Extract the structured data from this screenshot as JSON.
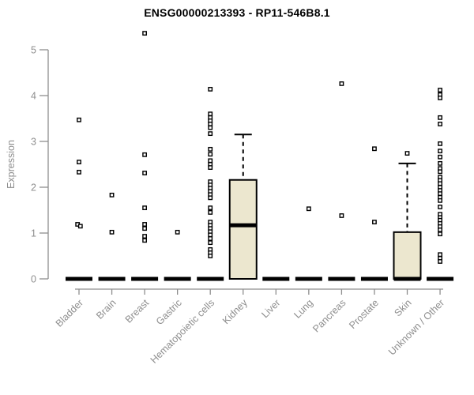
{
  "chart_data": {
    "type": "boxplot",
    "title": "ENSG00000213393 - RP11-546B8.1",
    "ylabel": "Expression",
    "ylim": [
      0,
      5
    ],
    "yticks": [
      "0",
      "1",
      "2",
      "3",
      "4",
      "5"
    ],
    "grid": false,
    "legend": "none",
    "colors": {
      "box_fill": "#ece7cf",
      "box_stroke": "#000000",
      "axis": "#8e8e8e",
      "axis_text": "#8e8e8e",
      "title_text": "#000000",
      "outlier_stroke": "#000000",
      "outlier_fill": "#ffffff"
    },
    "categories": [
      "Bladder",
      "Brain",
      "Breast",
      "Gastric",
      "Hematopoietic cells",
      "Kidney",
      "Liver",
      "Lung",
      "Pancreas",
      "Prostate",
      "Skin",
      "Unknown / Other"
    ],
    "series": [
      {
        "category": "Bladder",
        "q1": 0,
        "median": 0,
        "q3": 0,
        "whisker_low": 0,
        "whisker_high": 0,
        "outliers": [
          3.47,
          2.55,
          2.33,
          1.19,
          1.15
        ]
      },
      {
        "category": "Brain",
        "q1": 0,
        "median": 0,
        "q3": 0,
        "whisker_low": 0,
        "whisker_high": 0,
        "outliers": [
          1.83,
          1.02
        ]
      },
      {
        "category": "Breast",
        "q1": 0,
        "median": 0,
        "q3": 0,
        "whisker_low": 0,
        "whisker_high": 0,
        "outliers": [
          5.36,
          2.71,
          2.31,
          1.55,
          1.19,
          1.1,
          0.93,
          0.84
        ]
      },
      {
        "category": "Gastric",
        "q1": 0,
        "median": 0,
        "q3": 0,
        "whisker_low": 0,
        "whisker_high": 0,
        "outliers": [
          1.02
        ]
      },
      {
        "category": "Hematopoietic cells",
        "q1": 0,
        "median": 0,
        "q3": 0,
        "whisker_low": 0,
        "whisker_high": 0,
        "outliers": [
          4.14,
          3.6,
          3.52,
          3.45,
          3.38,
          3.3,
          3.17,
          2.83,
          2.72,
          2.58,
          2.5,
          2.43,
          2.12,
          2.05,
          1.98,
          1.91,
          1.84,
          1.77,
          1.55,
          1.45,
          1.24,
          1.17,
          1.1,
          1.03,
          0.96,
          0.88,
          0.79,
          0.64,
          0.57,
          0.5
        ]
      },
      {
        "category": "Kidney",
        "q1": 0,
        "median": 1.17,
        "q3": 2.16,
        "whisker_low": 0,
        "whisker_high": 3.15,
        "outliers": []
      },
      {
        "category": "Liver",
        "q1": 0,
        "median": 0,
        "q3": 0,
        "whisker_low": 0,
        "whisker_high": 0,
        "outliers": []
      },
      {
        "category": "Lung",
        "q1": 0,
        "median": 0,
        "q3": 0,
        "whisker_low": 0,
        "whisker_high": 0,
        "outliers": [
          1.53
        ]
      },
      {
        "category": "Pancreas",
        "q1": 0,
        "median": 0,
        "q3": 0,
        "whisker_low": 0,
        "whisker_high": 0,
        "outliers": [
          4.26,
          1.38
        ]
      },
      {
        "category": "Prostate",
        "q1": 0,
        "median": 0,
        "q3": 0,
        "whisker_low": 0,
        "whisker_high": 0,
        "outliers": [
          2.84,
          1.24
        ]
      },
      {
        "category": "Skin",
        "q1": 0,
        "median": 0,
        "q3": 1.02,
        "whisker_low": 0,
        "whisker_high": 2.52,
        "outliers": [
          2.74
        ]
      },
      {
        "category": "Unknown / Other",
        "q1": 0,
        "median": 0,
        "q3": 0,
        "whisker_low": 0,
        "whisker_high": 0,
        "outliers": [
          4.12,
          4.02,
          3.95,
          3.52,
          3.38,
          2.95,
          2.79,
          2.66,
          2.52,
          2.41,
          2.34,
          2.22,
          2.15,
          2.08,
          2.0,
          1.93,
          1.86,
          1.78,
          1.71,
          1.57,
          1.41,
          1.34,
          1.28,
          1.21,
          1.14,
          1.07,
          0.98,
          0.53,
          0.45,
          0.38
        ]
      }
    ]
  }
}
